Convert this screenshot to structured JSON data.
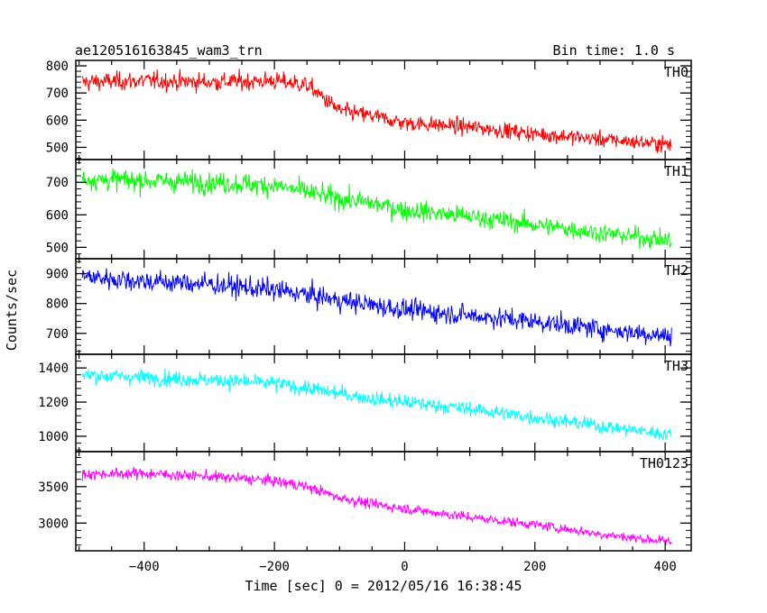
{
  "chart_data": {
    "type": "line",
    "title": "ae120516163845_wam3_trn",
    "subtitle": "Bin time: 1.0 s",
    "xlabel": "Time [sec] 0 = 2012/05/16 16:38:45",
    "ylabel": "Counts/sec",
    "xlim": [
      -505,
      440
    ],
    "x_ticks": [
      -400,
      -200,
      0,
      200,
      400
    ],
    "grid": false,
    "time_points": [
      -495,
      -400,
      -300,
      -200,
      -150,
      -100,
      -50,
      0,
      100,
      200,
      300,
      410
    ],
    "panels": [
      {
        "name": "TH0",
        "color": "#ff0000",
        "ylim": [
          455,
          820
        ],
        "y_ticks": [
          500,
          600,
          700,
          800
        ],
        "values": [
          740,
          745,
          740,
          745,
          730,
          635,
          615,
          590,
          575,
          550,
          530,
          510
        ]
      },
      {
        "name": "TH1",
        "color": "#00ff00",
        "ylim": [
          465,
          770
        ],
        "y_ticks": [
          500,
          600,
          700
        ],
        "values": [
          710,
          705,
          700,
          690,
          670,
          650,
          635,
          615,
          595,
          570,
          545,
          520
        ]
      },
      {
        "name": "TH2",
        "color": "#0000ff",
        "ylim": [
          630,
          950
        ],
        "y_ticks": [
          700,
          800,
          900
        ],
        "values": [
          890,
          875,
          865,
          845,
          830,
          810,
          795,
          780,
          760,
          740,
          715,
          690
        ]
      },
      {
        "name": "TH3",
        "color": "#00ffff",
        "ylim": [
          910,
          1480
        ],
        "y_ticks": [
          1000,
          1200,
          1400
        ],
        "values": [
          1360,
          1345,
          1330,
          1310,
          1280,
          1250,
          1220,
          1200,
          1160,
          1110,
          1060,
          1010
        ]
      },
      {
        "name": "TH0123",
        "color": "#ff00ff",
        "ylim": [
          2620,
          3980
        ],
        "y_ticks": [
          3000,
          3500
        ],
        "values": [
          3670,
          3680,
          3640,
          3580,
          3500,
          3350,
          3260,
          3200,
          3080,
          2980,
          2850,
          2740
        ]
      }
    ]
  }
}
